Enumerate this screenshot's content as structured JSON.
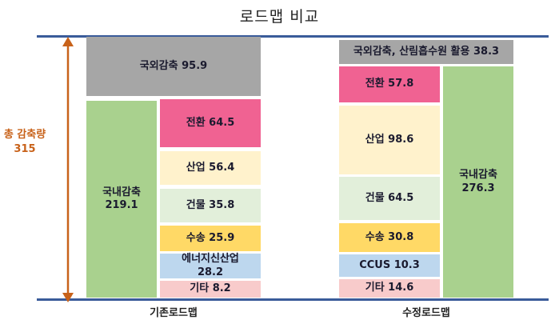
{
  "chart_data": {
    "type": "bar",
    "title": "로드맵 비교",
    "total_label": "총 감축량",
    "total_value": "315",
    "columns": [
      {
        "name": "기존로드맵",
        "outer": [
          {
            "label": "국외감축",
            "value": 95.9,
            "color": "#a6a6a6"
          },
          {
            "label": "국내감축",
            "value": 219.1,
            "color": "#a9d18e"
          }
        ],
        "breakdown": [
          {
            "label": "전환",
            "value": 64.5,
            "color": "#f06292"
          },
          {
            "label": "산업",
            "value": 56.4,
            "color": "#fff2cc"
          },
          {
            "label": "건물",
            "value": 35.8,
            "color": "#e2efda"
          },
          {
            "label": "수송",
            "value": 25.9,
            "color": "#ffd966"
          },
          {
            "label": "에너지신산업",
            "value": 28.2,
            "color": "#bdd7ee"
          },
          {
            "label": "기타",
            "value": 8.2,
            "color": "#f8cbcb"
          }
        ]
      },
      {
        "name": "수정로드맵",
        "outer": [
          {
            "label": "국외감축, 산림흡수원 활용",
            "value": 38.3,
            "color": "#a6a6a6"
          },
          {
            "label": "국내감축",
            "value": 276.3,
            "color": "#a9d18e"
          }
        ],
        "breakdown": [
          {
            "label": "전환",
            "value": 57.8,
            "color": "#f06292"
          },
          {
            "label": "산업",
            "value": 98.6,
            "color": "#fff2cc"
          },
          {
            "label": "건물",
            "value": 64.5,
            "color": "#e2efda"
          },
          {
            "label": "수송",
            "value": 30.8,
            "color": "#ffd966"
          },
          {
            "label": "CCUS",
            "value": 10.3,
            "color": "#bdd7ee"
          },
          {
            "label": "기타",
            "value": 14.6,
            "color": "#f8cbcb"
          }
        ]
      }
    ]
  }
}
